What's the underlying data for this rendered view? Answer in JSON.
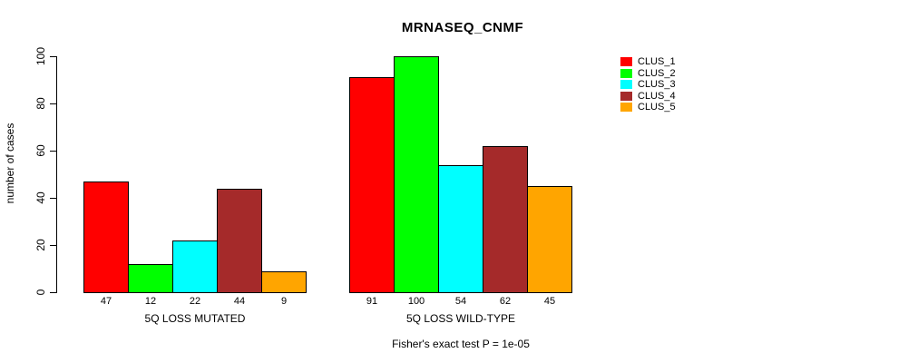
{
  "chart_data": {
    "type": "bar",
    "title": "MRNASEQ_CNMF",
    "ylabel": "number of cases",
    "ylim": [
      0,
      100
    ],
    "yticks": [
      0,
      20,
      40,
      60,
      80,
      100
    ],
    "grid": false,
    "legend_position": "right",
    "background_color": "#ffffff",
    "bar_border_color": "#000000",
    "series_names": [
      "CLUS_1",
      "CLUS_2",
      "CLUS_3",
      "CLUS_4",
      "CLUS_5"
    ],
    "colors": [
      "#ff0000",
      "#00ff00",
      "#00ffff",
      "#a52a2a",
      "#ffa500"
    ],
    "groups": [
      {
        "label": "5Q LOSS MUTATED",
        "values": [
          47,
          12,
          22,
          44,
          9
        ]
      },
      {
        "label": "5Q LOSS WILD-TYPE",
        "values": [
          91,
          100,
          54,
          62,
          45
        ]
      }
    ],
    "annotation": "Fisher's exact test P = 1e-05"
  }
}
